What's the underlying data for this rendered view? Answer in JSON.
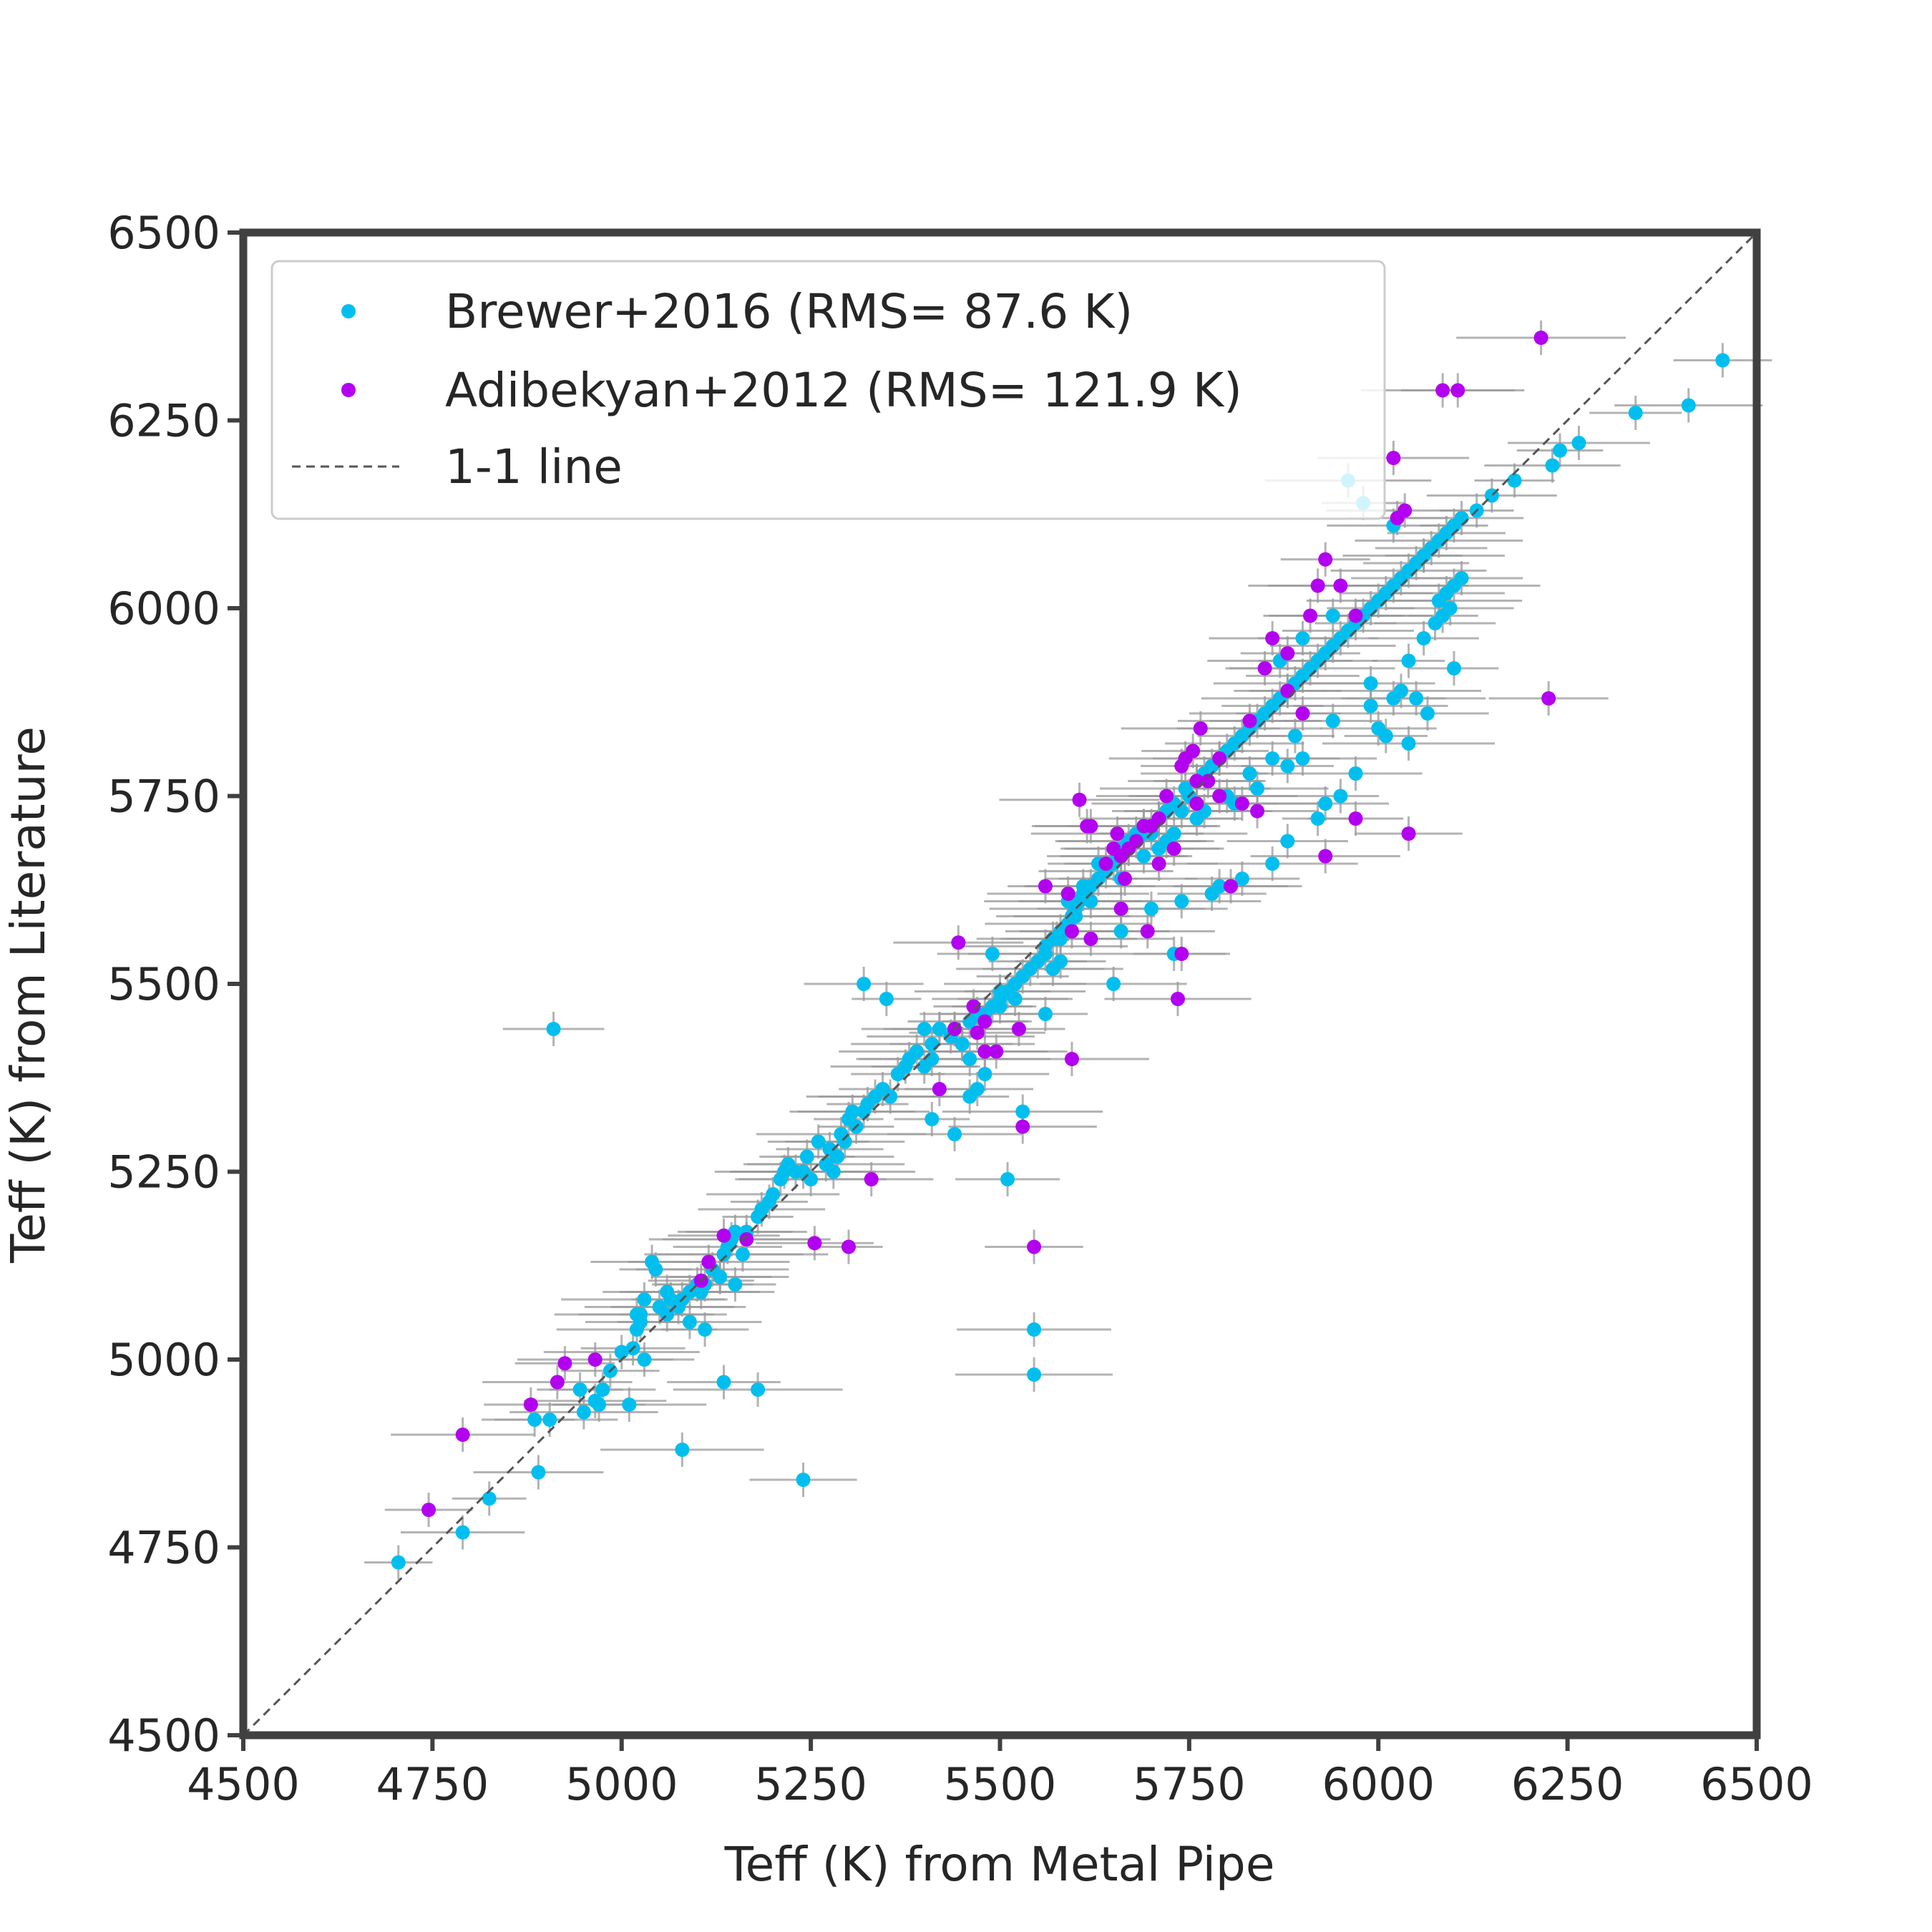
{
  "chart_data": {
    "type": "scatter",
    "xlabel": "Teff (K) from Metal Pipe",
    "ylabel": "Teff (K) from Literature",
    "xlim": [
      4500,
      6500
    ],
    "ylim": [
      4500,
      6500
    ],
    "xticks": [
      "4500",
      "4750",
      "5000",
      "5250",
      "5500",
      "5750",
      "6000",
      "6250",
      "6500"
    ],
    "yticks": [
      "4500",
      "4750",
      "5000",
      "5250",
      "5500",
      "5750",
      "6000",
      "6250",
      "6500"
    ],
    "grid": false,
    "legend_position": "top-left",
    "series": [
      {
        "name": "Brewer+2016 (RMS= 87.6 K)",
        "color": "#00bfef",
        "marker": "circle",
        "x": [
          4705,
          4790,
          4825,
          4890,
          4885,
          4905,
          4945,
          4965,
          4970,
          4950,
          4985,
          5010,
          5015,
          5020,
          5025,
          5030,
          5020,
          5025,
          5040,
          5045,
          5060,
          5065,
          5075,
          5080,
          5090,
          5100,
          5105,
          5110,
          5120,
          5130,
          5135,
          5140,
          5145,
          5150,
          5160,
          5165,
          5180,
          5185,
          5195,
          5200,
          5210,
          5215,
          5220,
          5240,
          5245,
          5250,
          5260,
          5270,
          5275,
          5280,
          5285,
          5290,
          5295,
          5300,
          5305,
          5310,
          5320,
          5325,
          5335,
          5345,
          5355,
          5365,
          5375,
          5380,
          5390,
          5400,
          5410,
          5420,
          5435,
          5440,
          5450,
          5460,
          5470,
          5480,
          5490,
          5500,
          5510,
          5520,
          5530,
          5540,
          5550,
          5560,
          5570,
          5575,
          5580,
          5590,
          5595,
          5600,
          5605,
          5610,
          5620,
          5630,
          5640,
          5650,
          5655,
          5660,
          5670,
          5680,
          5690,
          5700,
          5710,
          5720,
          5730,
          5740,
          5745,
          5750,
          5760,
          5770,
          5780,
          5790,
          5800,
          5810,
          5820,
          5830,
          5840,
          5850,
          5860,
          5870,
          5880,
          5890,
          5900,
          5910,
          5920,
          5930,
          5940,
          5950,
          5960,
          5970,
          5980,
          5990,
          6000,
          6010,
          6020,
          6030,
          6040,
          6050,
          6060,
          6070,
          6080,
          6090,
          6100,
          6110,
          6130,
          6150,
          6180,
          6230,
          6240,
          6265,
          6340,
          6410,
          6455,
          5545,
          5510,
          5530,
          5490,
          5960,
          6000,
          6040,
          6065,
          5500,
          5480,
          5460,
          5440,
          5560,
          5570,
          5580,
          5650,
          5660,
          5700,
          5730,
          5740,
          5780,
          5790,
          5820,
          5860,
          5880,
          5920,
          5930,
          5950,
          5970,
          6010,
          6050,
          6100,
          5450,
          5420,
          5410,
          4910,
          5545,
          5240,
          5080,
          5135,
          5180,
          5320,
          5350,
          5400,
          5410,
          5230,
          5150,
          5130,
          5110,
          5090,
          5060,
          5050,
          5030,
          5000,
          4975,
          5460,
          5470,
          5590,
          5610,
          5630,
          5670,
          5690,
          5710,
          5720,
          5770,
          5810,
          5840,
          5880,
          5900,
          5940,
          5990,
          6020,
          6030,
          6060,
          6080,
          6090,
          6100,
          6110,
          6040,
          5990,
          5890,
          5860,
          5830,
          5800,
          5760,
          5730,
          5690,
          5660,
          5620,
          5600,
          5580,
          5560,
          5520,
          5500,
          6075,
          6085,
          6095,
          6060,
          6020,
          5980,
          5940,
          5900,
          5870
        ],
        "y": [
          4730,
          4770,
          4815,
          4850,
          4920,
          4920,
          4960,
          4945,
          4940,
          4930,
          4985,
          4940,
          5015,
          5040,
          5050,
          5080,
          5060,
          5060,
          5130,
          5120,
          5090,
          5080,
          5070,
          5080,
          5090,
          5100,
          5090,
          5100,
          5120,
          5110,
          5140,
          5150,
          5160,
          5170,
          5140,
          5170,
          5190,
          5200,
          5210,
          5220,
          5240,
          5250,
          5260,
          5250,
          5270,
          5240,
          5290,
          5260,
          5280,
          5250,
          5270,
          5300,
          5290,
          5320,
          5330,
          5310,
          5330,
          5340,
          5350,
          5360,
          5350,
          5380,
          5390,
          5400,
          5410,
          5390,
          5420,
          5440,
          5430,
          5440,
          5420,
          5450,
          5460,
          5460,
          5470,
          5480,
          5490,
          5500,
          5510,
          5520,
          5530,
          5540,
          5560,
          5560,
          5570,
          5580,
          5590,
          5600,
          5610,
          5620,
          5630,
          5640,
          5650,
          5660,
          5670,
          5680,
          5690,
          5700,
          5710,
          5700,
          5720,
          5730,
          5740,
          5730,
          5760,
          5750,
          5770,
          5780,
          5790,
          5800,
          5810,
          5820,
          5830,
          5840,
          5850,
          5860,
          5870,
          5880,
          5890,
          5900,
          5910,
          5920,
          5930,
          5940,
          5950,
          5960,
          5970,
          5980,
          5990,
          6000,
          6010,
          6020,
          6030,
          6040,
          6050,
          6060,
          6070,
          6080,
          6090,
          6100,
          6110,
          6120,
          6130,
          6150,
          6170,
          6190,
          6210,
          6220,
          6260,
          6270,
          6330,
          5040,
          5240,
          5330,
          5540,
          6170,
          5840,
          5820,
          5860,
          5470,
          5380,
          5350,
          5300,
          5460,
          5520,
          5530,
          5500,
          5570,
          5600,
          5540,
          5610,
          5620,
          5630,
          5640,
          5660,
          5690,
          5720,
          5740,
          5750,
          5780,
          5830,
          5880,
          5920,
          5420,
          5440,
          5400,
          5440,
          4980,
          4840,
          4880,
          4970,
          4960,
          5500,
          5480,
          5440,
          5320,
          5250,
          5100,
          5110,
          5040,
          5050,
          5060,
          5070,
          5000,
          5010,
          4960,
          5400,
          5360,
          5610,
          5630,
          5660,
          5680,
          5700,
          5680,
          5690,
          5730,
          5740,
          5760,
          5790,
          5800,
          5850,
          5870,
          5880,
          5890,
          5960,
          6010,
          6020,
          6030,
          6040,
          5930,
          5900,
          5830,
          5800,
          5780,
          5750,
          5720,
          5700,
          5670,
          5640,
          5610,
          5590,
          5560,
          5550,
          5480,
          5490,
          5980,
          5990,
          6000,
          6070,
          6110,
          6140,
          5990,
          5960,
          5930
        ]
      },
      {
        "name": "Adibekyan+2012 (RMS= 121.9 K)",
        "color": "#b300f0",
        "marker": "circle",
        "x": [
          4745,
          4790,
          4880,
          4915,
          4925,
          4965,
          5105,
          5115,
          5135,
          5165,
          5255,
          5300,
          5330,
          5440,
          5445,
          5465,
          5470,
          5480,
          5495,
          5525,
          5530,
          5545,
          5595,
          5595,
          5605,
          5615,
          5620,
          5640,
          5655,
          5660,
          5665,
          5670,
          5690,
          5695,
          5710,
          5720,
          5730,
          5735,
          5740,
          5745,
          5755,
          5765,
          5775,
          5790,
          5805,
          5820,
          5840,
          5850,
          5860,
          5880,
          5900,
          5910,
          5920,
          5930,
          5950,
          5970,
          6020,
          6025,
          6035,
          6040,
          6085,
          6105,
          6215,
          6225,
          5420,
          5480,
          5560,
          5700,
          5740,
          5760,
          5790,
          5830,
          5880,
          5930,
          5970,
          5680,
          5650,
          5590,
          5620,
          5660,
          5710,
          5760
        ],
        "y": [
          4800,
          4900,
          4940,
          4970,
          4995,
          5000,
          5105,
          5130,
          5165,
          5160,
          5155,
          5150,
          5240,
          5440,
          5555,
          5470,
          5435,
          5450,
          5410,
          5440,
          5310,
          5150,
          5400,
          5570,
          5745,
          5710,
          5560,
          5660,
          5700,
          5670,
          5640,
          5680,
          5710,
          5570,
          5720,
          5750,
          5680,
          5480,
          5540,
          5800,
          5810,
          5840,
          5770,
          5750,
          5630,
          5740,
          5730,
          5920,
          5960,
          5890,
          5860,
          5990,
          6030,
          6065,
          6030,
          5720,
          6200,
          6120,
          6130,
          5700,
          6290,
          6290,
          6360,
          5880,
          5360,
          5410,
          5630,
          5710,
          5790,
          5770,
          5800,
          5850,
          5940,
          5670,
          5990,
          5690,
          5680,
          5620,
          5710,
          5600,
          5660,
          5740
        ]
      },
      {
        "name": "1-1 line",
        "color": "#555555",
        "marker": "dashed-line",
        "x": [
          4500,
          6500
        ],
        "y": [
          4500,
          6500
        ]
      }
    ]
  }
}
